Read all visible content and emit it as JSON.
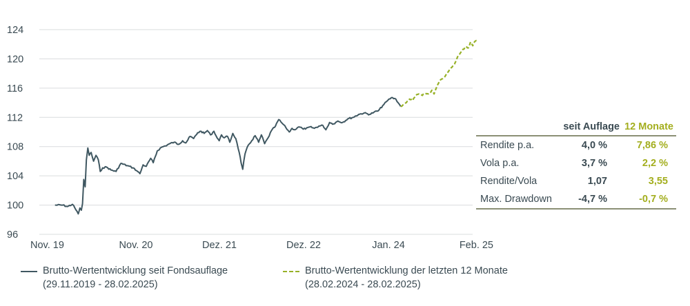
{
  "chart_data": {
    "type": "line",
    "ylim": [
      96,
      124
    ],
    "yticks": [
      96,
      100,
      104,
      108,
      112,
      116,
      120,
      124
    ],
    "xticks": [
      "Nov. 19",
      "Nov. 20",
      "Dez. 21",
      "Dez. 22",
      "Jan. 24",
      "Feb. 25"
    ],
    "grid": true,
    "series": [
      {
        "name": "Brutto-Wertentwicklung seit Fondsauflage",
        "period": "(29.11.2019 - 28.02.2025)",
        "color": "#3f5761",
        "style": "solid",
        "points": [
          [
            "2019-11-29",
            100.0
          ],
          [
            "2019-12-31",
            100.0
          ],
          [
            "2020-01-20",
            99.8
          ],
          [
            "2020-02-10",
            100.1
          ],
          [
            "2020-02-20",
            99.6
          ],
          [
            "2020-03-05",
            98.8
          ],
          [
            "2020-03-12",
            99.6
          ],
          [
            "2020-03-18",
            99.3
          ],
          [
            "2020-03-23",
            100.2
          ],
          [
            "2020-03-28",
            103.5
          ],
          [
            "2020-04-03",
            102.5
          ],
          [
            "2020-04-08",
            106.2
          ],
          [
            "2020-04-14",
            107.8
          ],
          [
            "2020-04-20",
            106.8
          ],
          [
            "2020-04-28",
            107.2
          ],
          [
            "2020-05-08",
            106.0
          ],
          [
            "2020-05-18",
            106.8
          ],
          [
            "2020-05-28",
            106.2
          ],
          [
            "2020-06-05",
            104.6
          ],
          [
            "2020-06-15",
            105.1
          ],
          [
            "2020-07-01",
            105.2
          ],
          [
            "2020-07-20",
            104.8
          ],
          [
            "2020-08-10",
            104.6
          ],
          [
            "2020-08-30",
            105.7
          ],
          [
            "2020-09-25",
            105.4
          ],
          [
            "2020-10-20",
            105.1
          ],
          [
            "2020-11-05",
            104.7
          ],
          [
            "2020-11-20",
            104.3
          ],
          [
            "2020-12-05",
            105.5
          ],
          [
            "2020-12-20",
            105.3
          ],
          [
            "2021-01-10",
            106.4
          ],
          [
            "2021-01-22",
            105.8
          ],
          [
            "2021-02-10",
            107.4
          ],
          [
            "2021-03-01",
            107.9
          ],
          [
            "2021-03-20",
            108.1
          ],
          [
            "2021-04-10",
            108.4
          ],
          [
            "2021-05-01",
            108.6
          ],
          [
            "2021-05-20",
            108.3
          ],
          [
            "2021-06-10",
            108.8
          ],
          [
            "2021-06-25",
            108.5
          ],
          [
            "2021-07-15",
            109.4
          ],
          [
            "2021-08-01",
            109.1
          ],
          [
            "2021-08-20",
            109.9
          ],
          [
            "2021-09-05",
            110.1
          ],
          [
            "2021-09-20",
            109.8
          ],
          [
            "2021-10-05",
            110.2
          ],
          [
            "2021-10-20",
            109.6
          ],
          [
            "2021-11-05",
            110.1
          ],
          [
            "2021-11-20",
            109.2
          ],
          [
            "2021-11-30",
            108.8
          ],
          [
            "2021-12-10",
            109.6
          ],
          [
            "2021-12-22",
            109.2
          ],
          [
            "2022-01-05",
            109.4
          ],
          [
            "2022-01-15",
            108.6
          ],
          [
            "2022-01-28",
            109.8
          ],
          [
            "2022-02-10",
            109.1
          ],
          [
            "2022-02-25",
            107.2
          ],
          [
            "2022-03-05",
            105.8
          ],
          [
            "2022-03-12",
            104.9
          ],
          [
            "2022-03-22",
            107.0
          ],
          [
            "2022-04-05",
            108.2
          ],
          [
            "2022-04-20",
            108.8
          ],
          [
            "2022-05-05",
            109.5
          ],
          [
            "2022-05-20",
            108.6
          ],
          [
            "2022-06-01",
            109.6
          ],
          [
            "2022-06-15",
            108.4
          ],
          [
            "2022-06-30",
            109.2
          ],
          [
            "2022-07-15",
            110.2
          ],
          [
            "2022-08-01",
            110.8
          ],
          [
            "2022-08-15",
            111.7
          ],
          [
            "2022-08-30",
            111.2
          ],
          [
            "2022-09-15",
            110.6
          ],
          [
            "2022-09-30",
            110.0
          ],
          [
            "2022-10-12",
            110.5
          ],
          [
            "2022-10-25",
            110.3
          ],
          [
            "2022-11-10",
            110.7
          ],
          [
            "2022-11-25",
            110.5
          ],
          [
            "2022-12-10",
            110.4
          ],
          [
            "2022-12-31",
            110.7
          ],
          [
            "2023-01-20",
            110.5
          ],
          [
            "2023-02-10",
            110.8
          ],
          [
            "2023-03-01",
            110.9
          ],
          [
            "2023-03-15",
            110.3
          ],
          [
            "2023-04-01",
            111.3
          ],
          [
            "2023-04-20",
            111.1
          ],
          [
            "2023-05-10",
            111.5
          ],
          [
            "2023-06-01",
            111.3
          ],
          [
            "2023-06-25",
            111.8
          ],
          [
            "2023-07-20",
            112.0
          ],
          [
            "2023-08-15",
            112.4
          ],
          [
            "2023-09-10",
            112.6
          ],
          [
            "2023-10-05",
            112.4
          ],
          [
            "2023-10-25",
            112.7
          ],
          [
            "2023-11-15",
            112.9
          ],
          [
            "2023-12-05",
            113.6
          ],
          [
            "2023-12-28",
            114.3
          ],
          [
            "2024-01-15",
            114.7
          ],
          [
            "2024-02-05",
            114.5
          ],
          [
            "2024-02-28",
            113.5
          ]
        ]
      },
      {
        "name": "Brutto-Wertentwicklung der letzten 12 Monate",
        "period": "(28.02.2024 - 28.02.2025)",
        "color": "#97b127",
        "style": "dashed",
        "points": [
          [
            "2024-02-28",
            113.5
          ],
          [
            "2024-03-10",
            113.7
          ],
          [
            "2024-03-25",
            114.0
          ],
          [
            "2024-04-10",
            114.5
          ],
          [
            "2024-04-25",
            114.3
          ],
          [
            "2024-05-10",
            115.0
          ],
          [
            "2024-05-25",
            115.2
          ],
          [
            "2024-06-10",
            115.0
          ],
          [
            "2024-06-25",
            115.3
          ],
          [
            "2024-07-10",
            115.2
          ],
          [
            "2024-07-25",
            115.7
          ],
          [
            "2024-08-05",
            115.2
          ],
          [
            "2024-08-15",
            116.0
          ],
          [
            "2024-08-30",
            116.9
          ],
          [
            "2024-09-15",
            117.3
          ],
          [
            "2024-09-30",
            117.8
          ],
          [
            "2024-10-15",
            118.4
          ],
          [
            "2024-10-30",
            118.9
          ],
          [
            "2024-11-10",
            119.3
          ],
          [
            "2024-11-25",
            120.3
          ],
          [
            "2024-12-10",
            120.9
          ],
          [
            "2024-12-20",
            121.3
          ],
          [
            "2025-01-05",
            121.7
          ],
          [
            "2025-01-15",
            121.5
          ],
          [
            "2025-01-25",
            122.3
          ],
          [
            "2025-02-05",
            121.8
          ],
          [
            "2025-02-15",
            122.4
          ],
          [
            "2025-02-28",
            122.5
          ]
        ]
      }
    ],
    "stats_table": {
      "columns": [
        "seit Auflage",
        "12 Monate"
      ],
      "rows": [
        {
          "label": "Rendite p.a.",
          "values": [
            "4,0 %",
            "7,86 %"
          ]
        },
        {
          "label": "Vola p.a.",
          "values": [
            "3,7 %",
            "2,2 %"
          ]
        },
        {
          "label": "Rendite/Vola",
          "values": [
            "1,07",
            "3,55"
          ]
        },
        {
          "label": "Max. Drawdown",
          "values": [
            "-4,7 %",
            "-0,7 %"
          ]
        }
      ]
    }
  }
}
